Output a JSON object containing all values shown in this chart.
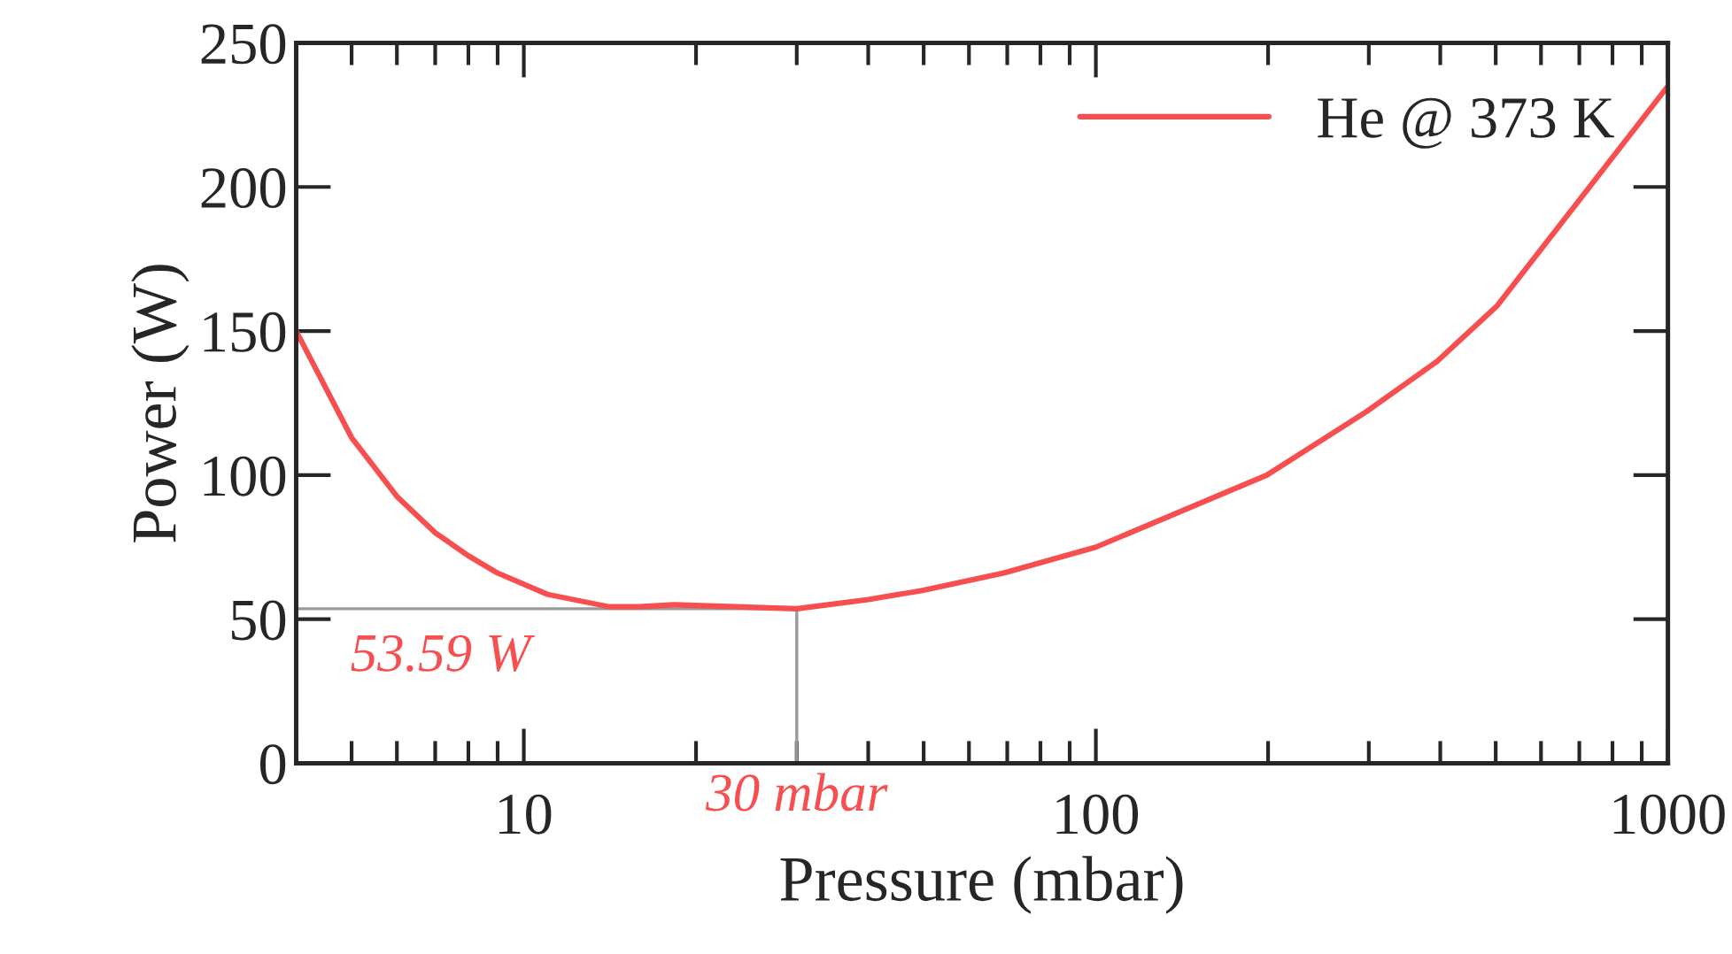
{
  "chart_data": {
    "type": "line",
    "xlabel": "Pressure (mbar)",
    "ylabel": "Power (W)",
    "log": "x",
    "x": [
      4,
      5,
      6,
      7,
      8,
      9,
      11,
      14.1,
      15.9,
      18.3,
      30,
      40,
      49.5,
      69,
      100,
      199,
      297,
      395,
      502,
      1000
    ],
    "series": [
      {
        "name": "He @ 373 K",
        "color": "#f74f4f",
        "values": [
          150,
          113,
          92.6,
          80,
          72,
          66,
          58.6,
          54.3,
          54.3,
          55,
          53.6,
          56.8,
          59.9,
          66,
          75,
          100,
          122,
          139.5,
          158.6,
          235
        ]
      }
    ],
    "xlim": [
      4,
      1000
    ],
    "xticks": [
      10,
      100,
      1000
    ],
    "ylim": [
      0,
      250
    ],
    "yticks": [
      0,
      50,
      100,
      150,
      200,
      250
    ],
    "ref_lines": [
      {
        "axis": "y",
        "value": 53.59,
        "label": "53.59 W",
        "color": "#999999"
      },
      {
        "axis": "x",
        "value": 30,
        "label": "30 mbar",
        "color": "#999999"
      }
    ],
    "grid": false,
    "legend": "top right",
    "marker": "none",
    "line_style": "solid"
  }
}
